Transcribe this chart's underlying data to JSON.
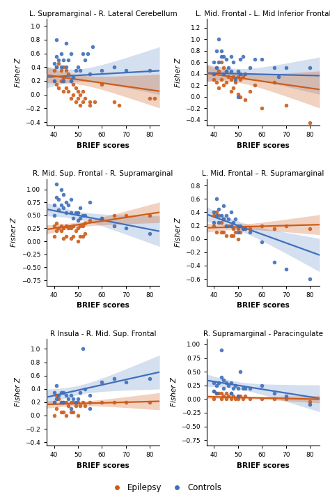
{
  "panels": [
    {
      "title": "L. Supramarginal - R. Lateral Cerebellum",
      "ylim": [
        -0.45,
        1.1
      ],
      "yticks": [
        -0.4,
        -0.2,
        0.0,
        0.2,
        0.4,
        0.6,
        0.8,
        1.0
      ],
      "epi_slope": -0.005,
      "epi_intercept": 0.47,
      "ctrl_slope": 0.002,
      "ctrl_intercept": 0.18,
      "epi_x": [
        40,
        40,
        41,
        41,
        42,
        42,
        43,
        43,
        44,
        44,
        44,
        45,
        45,
        46,
        46,
        47,
        47,
        48,
        48,
        49,
        49,
        50,
        50,
        51,
        51,
        52,
        52,
        53,
        55,
        55,
        57,
        60,
        65,
        67,
        80,
        82
      ],
      "epi_y": [
        0.35,
        0.2,
        0.4,
        0.15,
        0.45,
        0.1,
        0.35,
        0.2,
        0.4,
        0.25,
        0.05,
        0.35,
        0.1,
        0.3,
        0.05,
        0.2,
        -0.05,
        0.15,
        0.0,
        0.1,
        -0.1,
        0.05,
        -0.05,
        0.0,
        -0.15,
        0.05,
        -0.1,
        -0.05,
        -0.1,
        -0.15,
        -0.1,
        0.15,
        -0.1,
        -0.15,
        -0.05,
        -0.05
      ],
      "ctrl_x": [
        40,
        40,
        41,
        41,
        41,
        42,
        43,
        43,
        44,
        44,
        45,
        45,
        46,
        47,
        47,
        48,
        49,
        50,
        51,
        52,
        53,
        54,
        55,
        56,
        60,
        65,
        70,
        80
      ],
      "ctrl_y": [
        0.2,
        0.45,
        0.8,
        0.55,
        0.4,
        0.5,
        0.6,
        0.4,
        0.5,
        0.2,
        0.4,
        0.75,
        0.5,
        0.6,
        0.2,
        0.25,
        0.35,
        0.4,
        0.35,
        0.6,
        0.5,
        0.6,
        0.3,
        0.7,
        0.35,
        0.4,
        0.35,
        0.35
      ],
      "ylabel": "Fisher Z"
    },
    {
      "title": "L. Mid. Frontal - L. Mid Inferior Frontal",
      "ylim": [
        -0.5,
        1.35
      ],
      "yticks": [
        -0.4,
        -0.2,
        0.0,
        0.2,
        0.4,
        0.6,
        0.8,
        1.0,
        1.2
      ],
      "epi_slope": -0.006,
      "epi_intercept": 0.63,
      "ctrl_slope": -0.001,
      "ctrl_intercept": 0.45,
      "epi_x": [
        40,
        40,
        41,
        41,
        42,
        42,
        43,
        43,
        44,
        44,
        45,
        45,
        46,
        47,
        47,
        48,
        48,
        49,
        50,
        50,
        51,
        51,
        52,
        53,
        55,
        57,
        60,
        65,
        70,
        80
      ],
      "epi_y": [
        0.4,
        0.3,
        0.5,
        0.25,
        0.45,
        0.15,
        0.6,
        0.3,
        0.5,
        0.2,
        0.45,
        0.25,
        0.35,
        0.3,
        0.1,
        0.35,
        0.15,
        0.25,
        0.35,
        0.05,
        0.3,
        0.0,
        0.35,
        -0.05,
        0.1,
        0.2,
        -0.2,
        0.25,
        -0.15,
        -0.45
      ],
      "ctrl_x": [
        40,
        40,
        41,
        41,
        42,
        42,
        43,
        43,
        44,
        44,
        45,
        45,
        46,
        47,
        47,
        48,
        49,
        50,
        50,
        51,
        51,
        52,
        53,
        55,
        57,
        60,
        65,
        67,
        70,
        80
      ],
      "ctrl_y": [
        0.6,
        0.4,
        0.8,
        0.5,
        1.0,
        0.6,
        0.8,
        0.7,
        0.7,
        0.4,
        0.65,
        0.45,
        0.5,
        0.7,
        0.45,
        0.6,
        0.3,
        0.45,
        0.0,
        0.65,
        0.4,
        0.7,
        0.4,
        0.5,
        0.65,
        0.65,
        0.5,
        0.35,
        0.5,
        0.5
      ],
      "ylabel": "Fisher Z"
    },
    {
      "title": "R. Mid. Sup. Frontal - R. Supramarginal",
      "ylim": [
        -0.85,
        1.2
      ],
      "yticks": [
        -0.75,
        -0.5,
        -0.25,
        0.0,
        0.25,
        0.5,
        0.75,
        1.0
      ],
      "epi_slope": 0.007,
      "epi_intercept": -0.03,
      "ctrl_slope": -0.009,
      "ctrl_intercept": 0.95,
      "epi_x": [
        40,
        40,
        41,
        41,
        42,
        43,
        43,
        44,
        44,
        45,
        45,
        46,
        47,
        47,
        48,
        48,
        49,
        50,
        50,
        51,
        51,
        52,
        52,
        53,
        53,
        55,
        60,
        65,
        70,
        80
      ],
      "epi_y": [
        0.3,
        0.1,
        0.35,
        0.2,
        0.25,
        0.3,
        0.2,
        0.25,
        0.05,
        0.3,
        0.1,
        0.25,
        0.25,
        0.05,
        0.3,
        0.1,
        0.2,
        0.25,
        0.0,
        0.3,
        0.1,
        0.3,
        0.1,
        0.35,
        0.15,
        0.4,
        0.45,
        0.5,
        0.5,
        0.5
      ],
      "ctrl_x": [
        40,
        40,
        41,
        41,
        42,
        42,
        43,
        43,
        44,
        44,
        45,
        45,
        46,
        47,
        47,
        48,
        49,
        50,
        50,
        51,
        51,
        52,
        53,
        55,
        60,
        65,
        70,
        80
      ],
      "ctrl_y": [
        0.7,
        0.5,
        1.1,
        0.85,
        0.8,
        0.6,
        1.0,
        0.7,
        0.9,
        0.65,
        0.75,
        0.55,
        0.7,
        0.8,
        0.55,
        0.45,
        0.55,
        0.55,
        0.4,
        0.65,
        0.45,
        0.5,
        0.5,
        0.75,
        0.45,
        0.3,
        0.25,
        0.15
      ],
      "ylabel": "Fisher Z"
    },
    {
      "title": "L. Mid. Frontal – R. Supramarginal",
      "ylim": [
        -0.7,
        0.9
      ],
      "yticks": [
        -0.6,
        -0.4,
        -0.2,
        0.0,
        0.2,
        0.4,
        0.6,
        0.8
      ],
      "epi_slope": 0.001,
      "epi_intercept": 0.13,
      "ctrl_slope": -0.013,
      "ctrl_intercept": 0.85,
      "epi_x": [
        40,
        40,
        41,
        41,
        42,
        43,
        43,
        44,
        44,
        45,
        45,
        46,
        47,
        47,
        48,
        48,
        49,
        50,
        50,
        51,
        52,
        53,
        55,
        60,
        65,
        70,
        80
      ],
      "epi_y": [
        0.35,
        0.2,
        0.4,
        0.1,
        0.35,
        0.25,
        0.1,
        0.3,
        0.1,
        0.2,
        0.05,
        0.2,
        0.2,
        0.05,
        0.15,
        0.05,
        0.1,
        0.15,
        0.0,
        0.1,
        0.15,
        0.15,
        0.15,
        0.2,
        0.15,
        0.2,
        0.15
      ],
      "ctrl_x": [
        40,
        40,
        41,
        41,
        42,
        42,
        43,
        44,
        44,
        45,
        45,
        46,
        47,
        47,
        48,
        49,
        50,
        50,
        51,
        52,
        53,
        55,
        60,
        65,
        70,
        80
      ],
      "ctrl_y": [
        0.4,
        0.25,
        0.6,
        0.35,
        0.45,
        0.25,
        0.35,
        0.5,
        0.3,
        0.35,
        0.2,
        0.3,
        0.4,
        0.2,
        0.25,
        0.3,
        0.2,
        0.1,
        0.2,
        0.15,
        0.15,
        0.1,
        -0.05,
        -0.35,
        -0.45,
        -0.6
      ],
      "ylabel": "Fisher Z"
    },
    {
      "title": "R Insula - R. Mid. Sup. Frontal",
      "ylim": [
        -0.45,
        1.15
      ],
      "yticks": [
        -0.4,
        -0.2,
        0.0,
        0.2,
        0.4,
        0.6,
        0.8,
        1.0
      ],
      "epi_slope": 0.001,
      "epi_intercept": 0.13,
      "ctrl_slope": 0.008,
      "ctrl_intercept": -0.02,
      "epi_x": [
        40,
        40,
        41,
        41,
        42,
        43,
        43,
        44,
        44,
        45,
        45,
        46,
        47,
        47,
        48,
        48,
        49,
        50,
        50,
        51,
        52,
        53,
        55,
        60,
        65,
        70,
        80
      ],
      "epi_y": [
        0.2,
        0.0,
        0.3,
        0.1,
        0.25,
        0.2,
        0.05,
        0.2,
        0.05,
        0.2,
        0.0,
        0.15,
        0.2,
        0.05,
        0.2,
        0.05,
        0.15,
        0.2,
        0.0,
        0.15,
        0.2,
        0.15,
        0.2,
        0.2,
        0.2,
        0.2,
        0.2
      ],
      "ctrl_x": [
        40,
        40,
        41,
        41,
        42,
        43,
        43,
        44,
        44,
        45,
        46,
        47,
        47,
        48,
        49,
        50,
        51,
        52,
        53,
        55,
        55,
        60,
        65,
        70,
        80
      ],
      "ctrl_y": [
        0.35,
        0.2,
        0.45,
        0.25,
        0.3,
        0.35,
        0.2,
        0.35,
        0.2,
        0.3,
        0.25,
        0.3,
        0.1,
        0.25,
        0.2,
        0.25,
        0.35,
        1.0,
        0.4,
        0.3,
        0.1,
        0.5,
        0.55,
        0.5,
        0.55
      ],
      "ylabel": "Fisher Z"
    },
    {
      "title": "R. Supramarginal - Paracingulate",
      "ylim": [
        -0.85,
        1.1
      ],
      "yticks": [
        -0.75,
        -0.5,
        -0.25,
        0.0,
        0.25,
        0.5,
        0.75,
        1.0
      ],
      "epi_slope": -0.001,
      "epi_intercept": 0.08,
      "ctrl_slope": -0.007,
      "ctrl_intercept": 0.6,
      "epi_x": [
        40,
        40,
        41,
        42,
        43,
        43,
        44,
        45,
        45,
        46,
        47,
        47,
        48,
        49,
        50,
        50,
        51,
        52,
        53,
        55,
        60,
        65,
        70,
        80
      ],
      "epi_y": [
        0.15,
        0.0,
        0.1,
        0.1,
        0.1,
        0.0,
        0.05,
        0.1,
        0.0,
        0.05,
        0.1,
        0.0,
        0.05,
        0.0,
        0.05,
        0.0,
        0.05,
        0.0,
        0.05,
        0.0,
        0.0,
        0.0,
        0.0,
        -0.05
      ],
      "ctrl_x": [
        40,
        40,
        41,
        41,
        42,
        43,
        43,
        44,
        44,
        45,
        46,
        47,
        47,
        48,
        49,
        50,
        50,
        51,
        52,
        53,
        55,
        60,
        65,
        70,
        80
      ],
      "ctrl_y": [
        0.3,
        0.15,
        0.25,
        0.1,
        0.3,
        0.9,
        0.4,
        0.35,
        0.2,
        0.3,
        0.25,
        0.3,
        0.1,
        0.2,
        0.25,
        0.2,
        0.05,
        0.5,
        0.2,
        0.2,
        0.2,
        0.25,
        0.1,
        0.05,
        -0.1
      ],
      "ylabel": "Fisher Z"
    }
  ],
  "xlim": [
    37,
    84
  ],
  "xticks": [
    40,
    50,
    60,
    70,
    80
  ],
  "xlabel": "BRIEF scores",
  "epilepsy_color": "#cd5c1a",
  "controls_color": "#3f6fba",
  "dot_size": 16,
  "line_width": 1.6,
  "background_color": "#ffffff"
}
